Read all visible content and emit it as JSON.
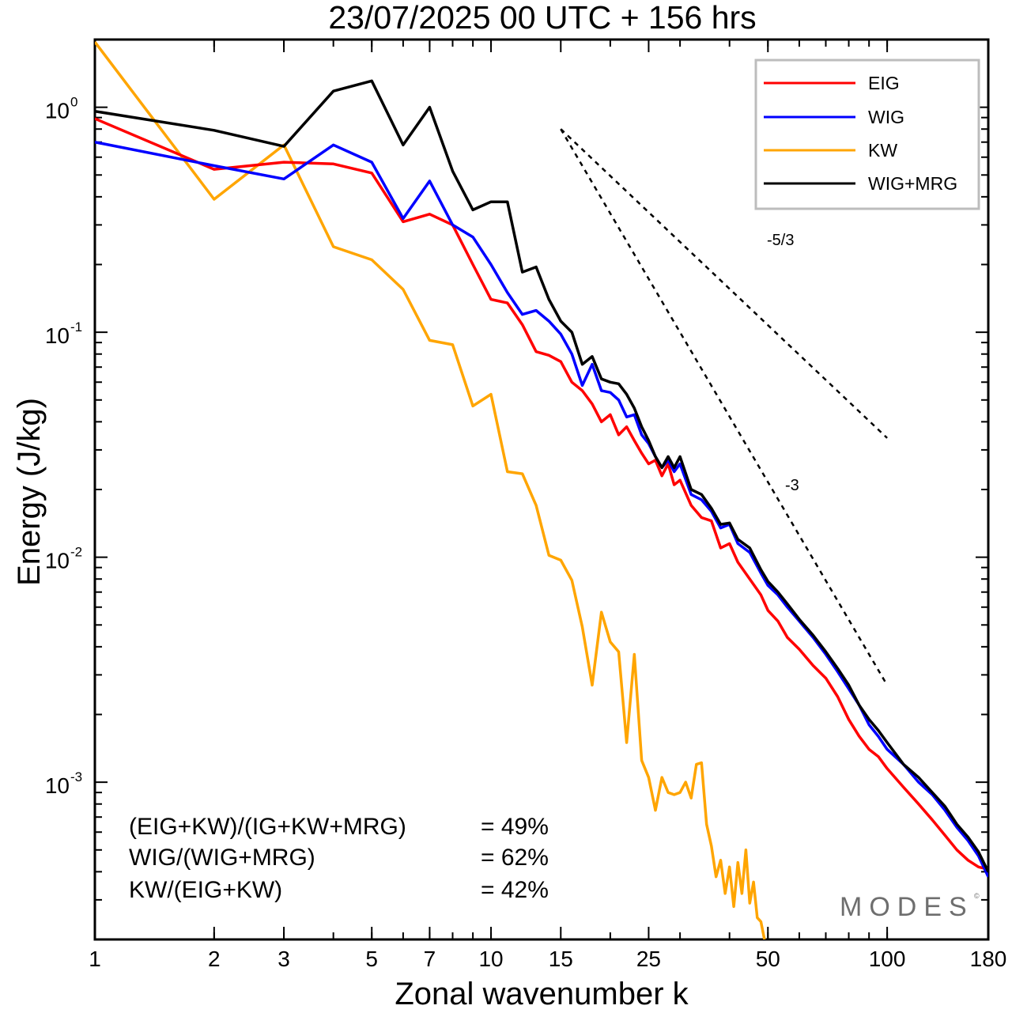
{
  "chart_data": {
    "type": "line",
    "title": "23/07/2025  00 UTC  + 156 hrs",
    "xlabel": "Zonal wavenumber k",
    "ylabel": "Energy (J/kg)",
    "xscale": "log",
    "yscale": "log",
    "xlim": [
      1,
      180
    ],
    "ylim": [
      0.0002,
      2.0
    ],
    "xticks": [
      {
        "value": 1,
        "label": "1"
      },
      {
        "value": 2,
        "label": "2"
      },
      {
        "value": 3,
        "label": "3"
      },
      {
        "value": 5,
        "label": "5"
      },
      {
        "value": 7,
        "label": "7"
      },
      {
        "value": 10,
        "label": "10"
      },
      {
        "value": 15,
        "label": "15"
      },
      {
        "value": 25,
        "label": "25"
      },
      {
        "value": 50,
        "label": "50"
      },
      {
        "value": 100,
        "label": "100"
      },
      {
        "value": 180,
        "label": "180"
      }
    ],
    "yticks": [
      {
        "value": 1,
        "base": "10",
        "exp": "0"
      },
      {
        "value": 0.1,
        "base": "10",
        "exp": "-1"
      },
      {
        "value": 0.01,
        "base": "10",
        "exp": "-2"
      },
      {
        "value": 0.001,
        "base": "10",
        "exp": "-3"
      }
    ],
    "legend_position": "top-right",
    "series": [
      {
        "name": "EIG",
        "color": "#ff0000",
        "points": [
          [
            1,
            0.89
          ],
          [
            2,
            0.53
          ],
          [
            3,
            0.57
          ],
          [
            4,
            0.56
          ],
          [
            5,
            0.51
          ],
          [
            6,
            0.31
          ],
          [
            7,
            0.335
          ],
          [
            8,
            0.3
          ],
          [
            9,
            0.2
          ],
          [
            10,
            0.14
          ],
          [
            11,
            0.135
          ],
          [
            12,
            0.108
          ],
          [
            13,
            0.082
          ],
          [
            14,
            0.079
          ],
          [
            15,
            0.074
          ],
          [
            16,
            0.06
          ],
          [
            17,
            0.055
          ],
          [
            18,
            0.048
          ],
          [
            19,
            0.04
          ],
          [
            20,
            0.043
          ],
          [
            21,
            0.035
          ],
          [
            22,
            0.038
          ],
          [
            23,
            0.033
          ],
          [
            24,
            0.029
          ],
          [
            25,
            0.026
          ],
          [
            26,
            0.027
          ],
          [
            27,
            0.023
          ],
          [
            28,
            0.026
          ],
          [
            29,
            0.021
          ],
          [
            30,
            0.022
          ],
          [
            32,
            0.017
          ],
          [
            34,
            0.015
          ],
          [
            36,
            0.0145
          ],
          [
            38,
            0.011
          ],
          [
            40,
            0.0115
          ],
          [
            42,
            0.0095
          ],
          [
            45,
            0.008
          ],
          [
            48,
            0.0068
          ],
          [
            50,
            0.0058
          ],
          [
            53,
            0.0052
          ],
          [
            56,
            0.0044
          ],
          [
            60,
            0.0039
          ],
          [
            65,
            0.0033
          ],
          [
            70,
            0.0029
          ],
          [
            75,
            0.0024
          ],
          [
            80,
            0.0019
          ],
          [
            85,
            0.0016
          ],
          [
            90,
            0.0014
          ],
          [
            95,
            0.0013
          ],
          [
            100,
            0.00115
          ],
          [
            110,
            0.00095
          ],
          [
            120,
            0.0008
          ],
          [
            130,
            0.00068
          ],
          [
            140,
            0.00058
          ],
          [
            150,
            0.0005
          ],
          [
            160,
            0.00045
          ],
          [
            170,
            0.00042
          ],
          [
            180,
            0.00041
          ]
        ]
      },
      {
        "name": "WIG",
        "color": "#0000ff",
        "points": [
          [
            1,
            0.7
          ],
          [
            2,
            0.55
          ],
          [
            3,
            0.48
          ],
          [
            4,
            0.68
          ],
          [
            5,
            0.57
          ],
          [
            6,
            0.32
          ],
          [
            7,
            0.47
          ],
          [
            8,
            0.3
          ],
          [
            9,
            0.265
          ],
          [
            10,
            0.2
          ],
          [
            11,
            0.15
          ],
          [
            12,
            0.12
          ],
          [
            13,
            0.125
          ],
          [
            14,
            0.112
          ],
          [
            15,
            0.098
          ],
          [
            16,
            0.08
          ],
          [
            17,
            0.058
          ],
          [
            18,
            0.072
          ],
          [
            19,
            0.055
          ],
          [
            20,
            0.054
          ],
          [
            21,
            0.05
          ],
          [
            22,
            0.042
          ],
          [
            23,
            0.043
          ],
          [
            24,
            0.035
          ],
          [
            25,
            0.032
          ],
          [
            26,
            0.028
          ],
          [
            27,
            0.025
          ],
          [
            28,
            0.027
          ],
          [
            29,
            0.024
          ],
          [
            30,
            0.026
          ],
          [
            32,
            0.019
          ],
          [
            34,
            0.018
          ],
          [
            36,
            0.016
          ],
          [
            38,
            0.0135
          ],
          [
            40,
            0.014
          ],
          [
            42,
            0.0115
          ],
          [
            45,
            0.0105
          ],
          [
            48,
            0.0085
          ],
          [
            50,
            0.0075
          ],
          [
            53,
            0.0068
          ],
          [
            56,
            0.006
          ],
          [
            60,
            0.0052
          ],
          [
            65,
            0.0044
          ],
          [
            70,
            0.0037
          ],
          [
            75,
            0.0031
          ],
          [
            80,
            0.0026
          ],
          [
            85,
            0.0022
          ],
          [
            90,
            0.0018
          ],
          [
            95,
            0.0016
          ],
          [
            100,
            0.0014
          ],
          [
            110,
            0.0012
          ],
          [
            120,
            0.001
          ],
          [
            130,
            0.00088
          ],
          [
            140,
            0.00075
          ],
          [
            150,
            0.00063
          ],
          [
            160,
            0.00055
          ],
          [
            170,
            0.00047
          ],
          [
            180,
            0.00038
          ]
        ]
      },
      {
        "name": "KW",
        "color": "#ffa500",
        "points": [
          [
            1,
            1.95
          ],
          [
            2,
            0.39
          ],
          [
            3,
            0.68
          ],
          [
            4,
            0.24
          ],
          [
            5,
            0.21
          ],
          [
            6,
            0.155
          ],
          [
            7,
            0.092
          ],
          [
            8,
            0.088
          ],
          [
            9,
            0.047
          ],
          [
            10,
            0.053
          ],
          [
            11,
            0.024
          ],
          [
            12,
            0.0235
          ],
          [
            13,
            0.017
          ],
          [
            14,
            0.0102
          ],
          [
            15,
            0.0097
          ],
          [
            16,
            0.0079
          ],
          [
            17,
            0.0049
          ],
          [
            18,
            0.0027
          ],
          [
            19,
            0.0057
          ],
          [
            20,
            0.0042
          ],
          [
            21,
            0.0038
          ],
          [
            22,
            0.0015
          ],
          [
            23,
            0.0037
          ],
          [
            24,
            0.00125
          ],
          [
            25,
            0.00105
          ],
          [
            26,
            0.00075
          ],
          [
            27,
            0.00105
          ],
          [
            28,
            0.0009
          ],
          [
            29,
            0.00088
          ],
          [
            30,
            0.0009
          ],
          [
            31,
            0.001
          ],
          [
            32,
            0.00085
          ],
          [
            33,
            0.0012
          ],
          [
            34,
            0.00122
          ],
          [
            35,
            0.00065
          ],
          [
            36,
            0.00052
          ],
          [
            37,
            0.00038
          ],
          [
            38,
            0.00045
          ],
          [
            39,
            0.00032
          ],
          [
            40,
            0.00042
          ],
          [
            41,
            0.00028
          ],
          [
            42,
            0.00044
          ],
          [
            43,
            0.00032
          ],
          [
            44,
            0.0005
          ],
          [
            45,
            0.00029
          ],
          [
            46,
            0.00036
          ],
          [
            47,
            0.00025
          ],
          [
            48,
            0.00024
          ],
          [
            49,
            0.0002
          ]
        ]
      },
      {
        "name": "WIG+MRG",
        "color": "#000000",
        "points": [
          [
            1,
            0.96
          ],
          [
            2,
            0.79
          ],
          [
            3,
            0.67
          ],
          [
            4,
            1.18
          ],
          [
            5,
            1.31
          ],
          [
            6,
            0.68
          ],
          [
            7,
            1.0
          ],
          [
            8,
            0.52
          ],
          [
            9,
            0.35
          ],
          [
            10,
            0.38
          ],
          [
            11,
            0.38
          ],
          [
            12,
            0.185
          ],
          [
            13,
            0.195
          ],
          [
            14,
            0.14
          ],
          [
            15,
            0.112
          ],
          [
            16,
            0.1
          ],
          [
            17,
            0.072
          ],
          [
            18,
            0.078
          ],
          [
            19,
            0.062
          ],
          [
            20,
            0.06
          ],
          [
            21,
            0.059
          ],
          [
            22,
            0.053
          ],
          [
            23,
            0.046
          ],
          [
            24,
            0.038
          ],
          [
            25,
            0.033
          ],
          [
            26,
            0.028
          ],
          [
            27,
            0.025
          ],
          [
            28,
            0.028
          ],
          [
            29,
            0.025
          ],
          [
            30,
            0.028
          ],
          [
            32,
            0.02
          ],
          [
            34,
            0.019
          ],
          [
            36,
            0.0165
          ],
          [
            38,
            0.014
          ],
          [
            40,
            0.0142
          ],
          [
            42,
            0.012
          ],
          [
            45,
            0.011
          ],
          [
            48,
            0.0088
          ],
          [
            50,
            0.0078
          ],
          [
            53,
            0.007
          ],
          [
            56,
            0.0062
          ],
          [
            60,
            0.0053
          ],
          [
            65,
            0.0045
          ],
          [
            70,
            0.0038
          ],
          [
            75,
            0.0032
          ],
          [
            80,
            0.0027
          ],
          [
            85,
            0.0022
          ],
          [
            90,
            0.0019
          ],
          [
            95,
            0.0017
          ],
          [
            100,
            0.0015
          ],
          [
            110,
            0.0012
          ],
          [
            120,
            0.00105
          ],
          [
            130,
            0.0009
          ],
          [
            140,
            0.00078
          ],
          [
            150,
            0.00065
          ],
          [
            160,
            0.00057
          ],
          [
            170,
            0.00049
          ],
          [
            180,
            0.0004
          ]
        ]
      }
    ],
    "slope_lines": [
      {
        "label": "-5/3",
        "k_start": 15,
        "k_end": 100,
        "e_start": 0.8
      },
      {
        "label": "-3",
        "k_start": 15,
        "k_end": 100,
        "e_start": 0.8
      }
    ]
  },
  "ratios": [
    {
      "label": "(EIG+KW)/(IG+KW+MRG)",
      "value": "= 49%"
    },
    {
      "label": "WIG/(WIG+MRG)",
      "value": "= 62%"
    },
    {
      "label": "KW/(EIG+KW)",
      "value": "= 42%"
    }
  ],
  "logo": {
    "text": "MODES",
    "mark": "©"
  }
}
